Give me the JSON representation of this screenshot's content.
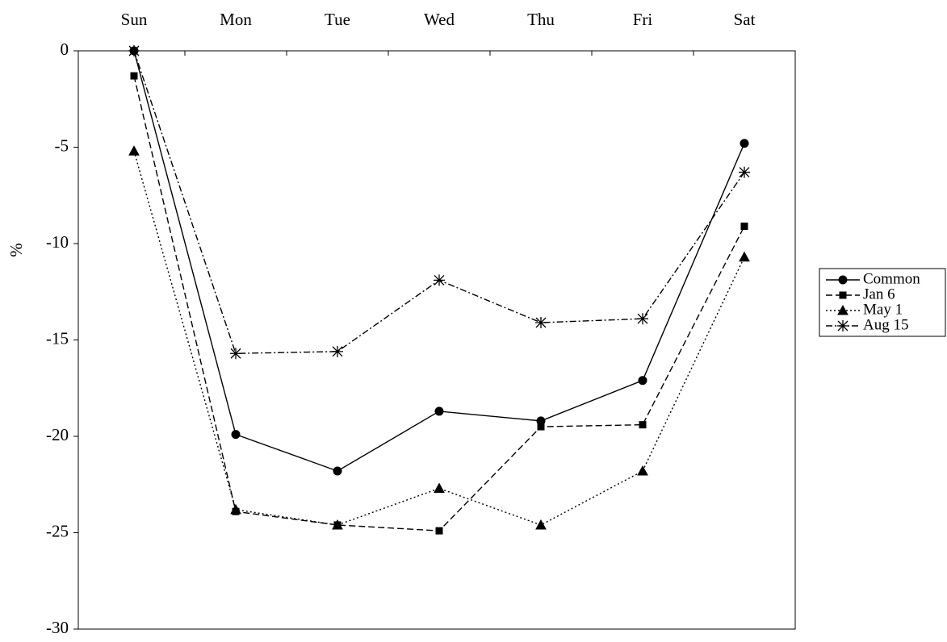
{
  "chart_data": {
    "type": "line",
    "ylabel": "%",
    "x_axis_position": "top",
    "categories": [
      "Sun",
      "Mon",
      "Tue",
      "Wed",
      "Thu",
      "Fri",
      "Sat"
    ],
    "ylim": [
      -30,
      0
    ],
    "yticks": [
      0,
      -5,
      -10,
      -15,
      -20,
      -25,
      -30
    ],
    "grid": false,
    "legend": "right",
    "series": [
      {
        "name": "Common",
        "color": "#000000",
        "marker": "circle",
        "dash": "solid",
        "values": [
          0,
          -19.9,
          -21.8,
          -18.7,
          -19.2,
          -17.1,
          -4.8
        ]
      },
      {
        "name": "Jan 6",
        "color": "#000000",
        "marker": "square",
        "dash": "dashed",
        "values": [
          -1.3,
          -23.9,
          -24.6,
          -24.9,
          -19.5,
          -19.4,
          -9.1
        ]
      },
      {
        "name": "May 1",
        "color": "#000000",
        "marker": "triangle",
        "dash": "dotted",
        "values": [
          -5.2,
          -23.8,
          -24.6,
          -22.7,
          -24.6,
          -21.8,
          -10.7
        ]
      },
      {
        "name": "Aug 15",
        "color": "#000000",
        "marker": "star",
        "dash": "dashdot",
        "values": [
          0,
          -15.7,
          -15.6,
          -11.9,
          -14.1,
          -13.9,
          -6.3
        ]
      }
    ]
  }
}
